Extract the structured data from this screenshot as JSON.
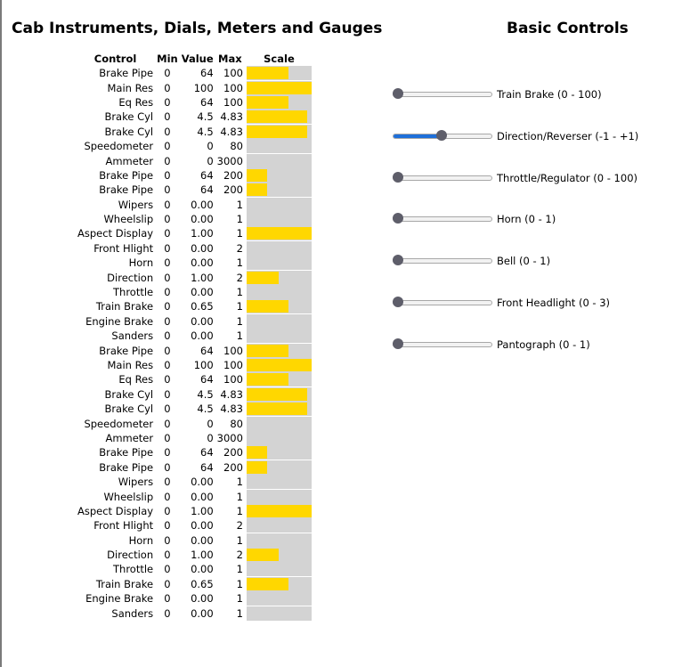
{
  "headings": {
    "instruments": "Cab Instruments, Dials, Meters and Gauges",
    "controls": "Basic Controls"
  },
  "table": {
    "headers": {
      "control": "Control",
      "min": "Min",
      "value": "Value",
      "max": "Max",
      "scale": "Scale"
    },
    "rows": [
      {
        "name": "Brake Pipe",
        "min": "0",
        "value": "64",
        "max": "100",
        "fill": 0.64
      },
      {
        "name": "Main Res",
        "min": "0",
        "value": "100",
        "max": "100",
        "fill": 1.0
      },
      {
        "name": "Eq Res",
        "min": "0",
        "value": "64",
        "max": "100",
        "fill": 0.64
      },
      {
        "name": "Brake Cyl",
        "min": "0",
        "value": "4.5",
        "max": "4.83",
        "fill": 0.93
      },
      {
        "name": "Brake Cyl",
        "min": "0",
        "value": "4.5",
        "max": "4.83",
        "fill": 0.93
      },
      {
        "name": "Speedometer",
        "min": "0",
        "value": "0",
        "max": "80",
        "fill": 0.0
      },
      {
        "name": "Ammeter",
        "min": "0",
        "value": "0",
        "max": "3000",
        "fill": 0.0
      },
      {
        "name": "Brake Pipe",
        "min": "0",
        "value": "64",
        "max": "200",
        "fill": 0.32
      },
      {
        "name": "Brake Pipe",
        "min": "0",
        "value": "64",
        "max": "200",
        "fill": 0.32
      },
      {
        "name": "Wipers",
        "min": "0",
        "value": "0.00",
        "max": "1",
        "fill": 0.0
      },
      {
        "name": "Wheelslip",
        "min": "0",
        "value": "0.00",
        "max": "1",
        "fill": 0.0
      },
      {
        "name": "Aspect Display",
        "min": "0",
        "value": "1.00",
        "max": "1",
        "fill": 1.0
      },
      {
        "name": "Front Hlight",
        "min": "0",
        "value": "0.00",
        "max": "2",
        "fill": 0.0
      },
      {
        "name": "Horn",
        "min": "0",
        "value": "0.00",
        "max": "1",
        "fill": 0.0
      },
      {
        "name": "Direction",
        "min": "0",
        "value": "1.00",
        "max": "2",
        "fill": 0.5
      },
      {
        "name": "Throttle",
        "min": "0",
        "value": "0.00",
        "max": "1",
        "fill": 0.0
      },
      {
        "name": "Train Brake",
        "min": "0",
        "value": "0.65",
        "max": "1",
        "fill": 0.65
      },
      {
        "name": "Engine Brake",
        "min": "0",
        "value": "0.00",
        "max": "1",
        "fill": 0.0
      },
      {
        "name": "Sanders",
        "min": "0",
        "value": "0.00",
        "max": "1",
        "fill": 0.0
      },
      {
        "name": "Brake Pipe",
        "min": "0",
        "value": "64",
        "max": "100",
        "fill": 0.64
      },
      {
        "name": "Main Res",
        "min": "0",
        "value": "100",
        "max": "100",
        "fill": 1.0
      },
      {
        "name": "Eq Res",
        "min": "0",
        "value": "64",
        "max": "100",
        "fill": 0.64
      },
      {
        "name": "Brake Cyl",
        "min": "0",
        "value": "4.5",
        "max": "4.83",
        "fill": 0.93
      },
      {
        "name": "Brake Cyl",
        "min": "0",
        "value": "4.5",
        "max": "4.83",
        "fill": 0.93
      },
      {
        "name": "Speedometer",
        "min": "0",
        "value": "0",
        "max": "80",
        "fill": 0.0
      },
      {
        "name": "Ammeter",
        "min": "0",
        "value": "0",
        "max": "3000",
        "fill": 0.0
      },
      {
        "name": "Brake Pipe",
        "min": "0",
        "value": "64",
        "max": "200",
        "fill": 0.32
      },
      {
        "name": "Brake Pipe",
        "min": "0",
        "value": "64",
        "max": "200",
        "fill": 0.32
      },
      {
        "name": "Wipers",
        "min": "0",
        "value": "0.00",
        "max": "1",
        "fill": 0.0
      },
      {
        "name": "Wheelslip",
        "min": "0",
        "value": "0.00",
        "max": "1",
        "fill": 0.0
      },
      {
        "name": "Aspect Display",
        "min": "0",
        "value": "1.00",
        "max": "1",
        "fill": 1.0
      },
      {
        "name": "Front Hlight",
        "min": "0",
        "value": "0.00",
        "max": "2",
        "fill": 0.0
      },
      {
        "name": "Horn",
        "min": "0",
        "value": "0.00",
        "max": "1",
        "fill": 0.0
      },
      {
        "name": "Direction",
        "min": "0",
        "value": "1.00",
        "max": "2",
        "fill": 0.5
      },
      {
        "name": "Throttle",
        "min": "0",
        "value": "0.00",
        "max": "1",
        "fill": 0.0
      },
      {
        "name": "Train Brake",
        "min": "0",
        "value": "0.65",
        "max": "1",
        "fill": 0.65
      },
      {
        "name": "Engine Brake",
        "min": "0",
        "value": "0.00",
        "max": "1",
        "fill": 0.0
      },
      {
        "name": "Sanders",
        "min": "0",
        "value": "0.00",
        "max": "1",
        "fill": 0.0
      }
    ]
  },
  "controls": [
    {
      "label": "Train Brake (0 - 100)",
      "level": 0.0
    },
    {
      "label": "Direction/Reverser (-1 - +1)",
      "level": 0.5
    },
    {
      "label": "Throttle/Regulator (0 - 100)",
      "level": 0.0
    },
    {
      "label": "Horn (0 - 1)",
      "level": 0.0
    },
    {
      "label": "Bell (0 - 1)",
      "level": 0.0
    },
    {
      "label": "Front Headlight (0 - 3)",
      "level": 0.0
    },
    {
      "label": "Pantograph (0 - 1)",
      "level": 0.0
    }
  ],
  "colors": {
    "bar_fill": "#ffd700",
    "bar_track": "#d3d3d3",
    "slider_active": "#1e6fd9",
    "slider_thumb": "#5e5e6a"
  }
}
